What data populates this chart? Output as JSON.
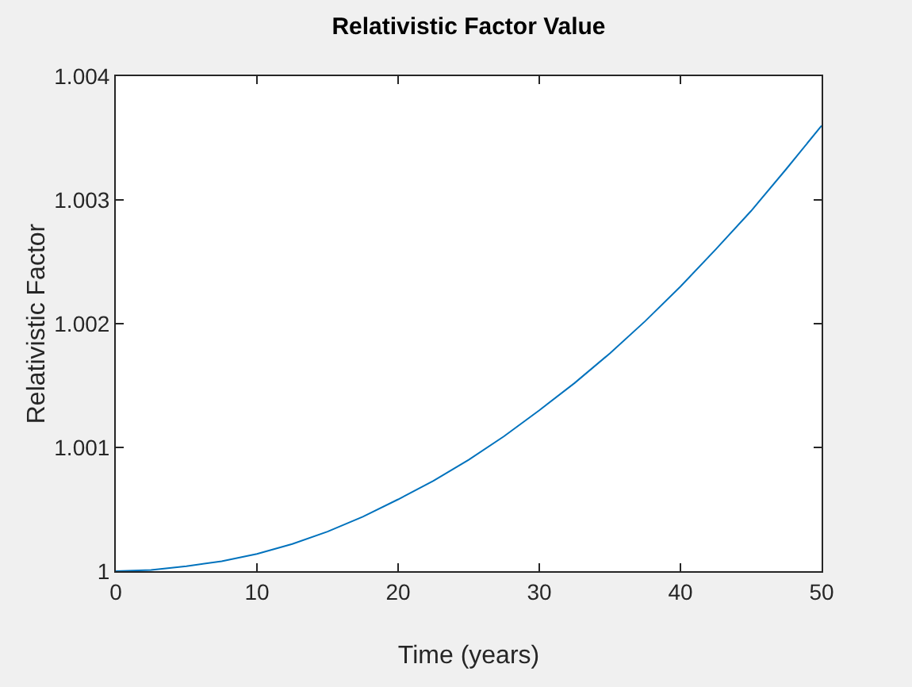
{
  "chart_data": {
    "type": "line",
    "title": "Relativistic Factor Value",
    "xlabel": "Time (years)",
    "ylabel": "Relativistic Factor",
    "x": [
      0,
      2.5,
      5,
      7.5,
      10,
      12.5,
      15,
      17.5,
      20,
      22.5,
      25,
      27.5,
      30,
      32.5,
      35,
      37.5,
      40,
      42.5,
      45,
      47.5,
      50
    ],
    "series": [
      {
        "color": "#0072bd",
        "values": [
          1,
          1.00001,
          1.00004,
          1.00008,
          1.00014,
          1.00022,
          1.00032,
          1.00044,
          1.00058,
          1.00073,
          1.0009,
          1.00109,
          1.0013,
          1.00152,
          1.00176,
          1.00202,
          1.0023,
          1.0026,
          1.00291,
          1.00325,
          1.0036
        ]
      }
    ],
    "xlim": [
      0,
      50
    ],
    "xticks": [
      0,
      10,
      20,
      30,
      40,
      50
    ],
    "ylim": [
      1,
      1.004
    ],
    "yticks": [
      1,
      1.001,
      1.002,
      1.003,
      1.004
    ],
    "grid": false,
    "legend": false,
    "marker": "none",
    "line_style": "solid"
  }
}
